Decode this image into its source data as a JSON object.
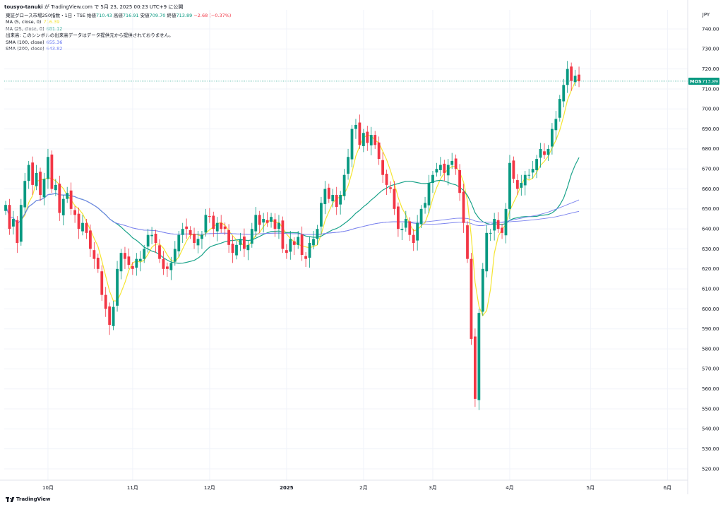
{
  "header": {
    "user": "tousyo-tanuki",
    "platform_text": "が TradingView.com で 5月 23, 2025 00:23 UTC+9 に公開"
  },
  "legend": {
    "symbol": "東証グロース市場250指数・1日・TSE",
    "ohlc": [
      {
        "label": "始値",
        "value": "710.43"
      },
      {
        "label": "高値",
        "value": "716.91"
      },
      {
        "label": "安値",
        "value": "709.70"
      },
      {
        "label": "終値",
        "value": "713.89"
      }
    ],
    "change": "−2.68 (−0.37%)",
    "indicators": [
      {
        "label": "MA (5, close, 0)",
        "value": "716.39",
        "color": "#f2e233"
      },
      {
        "label": "MA (25, close, 0)",
        "value": "681.12",
        "color": "#089981"
      },
      {
        "label": "出来高: このシンボルの出来高データはデータ提供元から提供されておりません。",
        "value": "",
        "color": "#131722"
      },
      {
        "label": "SMA (100, close)",
        "value": "655.36",
        "color": "#5b6cf0"
      },
      {
        "label": "SMA (200, close)",
        "value": "643.82",
        "color": "#5b6cf0"
      }
    ]
  },
  "chart_data": {
    "type": "candlestick",
    "currency": "JPY",
    "last_price": 713.89,
    "last_price_label": "MOS",
    "last_price_text": "713.89",
    "ylim": [
      515,
      748
    ],
    "y_ticks": [
      "740.00",
      "730.00",
      "720.00",
      "710.00",
      "700.00",
      "690.00",
      "680.00",
      "670.00",
      "660.00",
      "650.00",
      "640.00",
      "630.00",
      "620.00",
      "610.00",
      "600.00",
      "590.00",
      "580.00",
      "570.00",
      "560.00",
      "550.00",
      "540.00",
      "530.00",
      "520.00"
    ],
    "x_ticks": [
      {
        "label": "10月",
        "index": 11
      },
      {
        "label": "11月",
        "index": 33
      },
      {
        "label": "12月",
        "index": 53
      },
      {
        "label": "2025",
        "index": 73
      },
      {
        "label": "2月",
        "index": 93
      },
      {
        "label": "3月",
        "index": 111
      },
      {
        "label": "4月",
        "index": 131
      },
      {
        "label": "5月",
        "index": 152
      },
      {
        "label": "6月",
        "index": 172
      }
    ],
    "closes": [
      652,
      640,
      645,
      633,
      652,
      664,
      672,
      662,
      668,
      657,
      665,
      676,
      660,
      662,
      648,
      655,
      658,
      650,
      647,
      640,
      643,
      638,
      630,
      625,
      620,
      607,
      600,
      592,
      601,
      620,
      628,
      625,
      622,
      620,
      625,
      625,
      630,
      637,
      637,
      633,
      625,
      620,
      620,
      623,
      630,
      637,
      640,
      640,
      637,
      633,
      635,
      637,
      647,
      646,
      640,
      643,
      640,
      640,
      632,
      628,
      632,
      635,
      630,
      632,
      640,
      647,
      642,
      645,
      643,
      646,
      640,
      643,
      630,
      628,
      635,
      632,
      636,
      627,
      625,
      633,
      635,
      640,
      653,
      660,
      655,
      657,
      651,
      657,
      667,
      676,
      690,
      692,
      682,
      688,
      683,
      687,
      682,
      675,
      667,
      662,
      660,
      650,
      640,
      640,
      645,
      637,
      633,
      643,
      650,
      653,
      663,
      667,
      670,
      672,
      668,
      672,
      674,
      670,
      658,
      643,
      625,
      585,
      555,
      598,
      620,
      638,
      638,
      645,
      640,
      638,
      650,
      673,
      665,
      660,
      663,
      667,
      667,
      670,
      675,
      680,
      677,
      680,
      690,
      695,
      705,
      712,
      720,
      714,
      716.57,
      713.89
    ],
    "series": [
      {
        "name": "MA (5, close, 0)",
        "color": "#f5e531",
        "window": 5
      },
      {
        "name": "MA (25, close, 0)",
        "color": "#1aa38a",
        "window": 25
      },
      {
        "name": "SMA (100, close)",
        "color": "#7b83ee",
        "window": 100
      },
      {
        "name": "SMA (200, close)",
        "color": "#7b83ee",
        "window": 200
      }
    ]
  }
}
